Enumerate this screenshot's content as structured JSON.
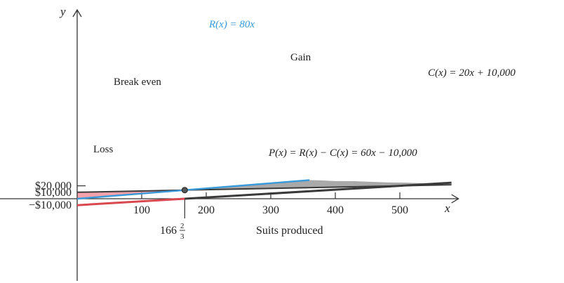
{
  "chart_data": {
    "type": "line",
    "xlabel": "Suits produced",
    "x_axis_var": "x",
    "y_axis_var": "y",
    "xlim": [
      0,
      580
    ],
    "ylim": [
      -11000,
      29500
    ],
    "x_ticks": [
      100,
      200,
      300,
      400,
      500
    ],
    "y_ticks": [
      20000,
      10000,
      -10000
    ],
    "y_tick_labels": [
      "$20,000",
      "$10,000",
      "−$10,000"
    ],
    "series": [
      {
        "name": "R(x) = 80x",
        "color": "#3a9ad9",
        "x": [
          0,
          360
        ],
        "y": [
          0,
          28800
        ]
      },
      {
        "name": "C(x) = 20x + 10,000",
        "color": "#3a3a3a",
        "x": [
          0,
          580
        ],
        "y": [
          10000,
          21600
        ]
      },
      {
        "name": "P(x) = R(x) − C(x) = 60x − 10,000",
        "color": "#3a3a3a",
        "color_negative": "#d9474f",
        "x": [
          0,
          166.667,
          580
        ],
        "y": [
          -10000,
          0,
          24800
        ]
      }
    ],
    "regions": [
      {
        "label": "Loss",
        "color": "#f4a3ad"
      },
      {
        "label": "Gain",
        "color": "#a9a9a9"
      }
    ],
    "annotations": [
      {
        "text": "Break even",
        "x": 166.667,
        "y": 13333
      },
      {
        "text": "166",
        "fraction_num": "2",
        "fraction_den": "3",
        "x": 166.667,
        "y": 0
      }
    ]
  }
}
